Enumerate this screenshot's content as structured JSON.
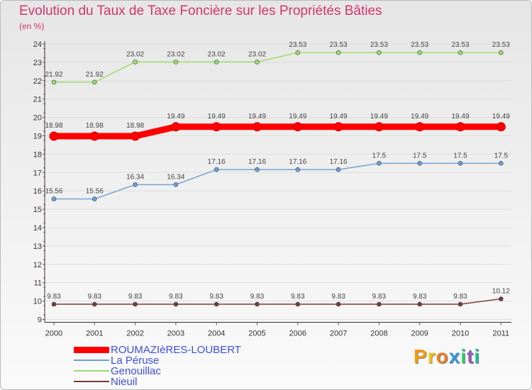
{
  "chart_data": {
    "type": "line",
    "title": "Evolution du Taux de Taxe Foncière sur les Propriétés Bâties",
    "ylabel": "(en %)",
    "xlabel": "",
    "ylim": [
      9,
      24
    ],
    "yticks": [
      9,
      10,
      11,
      12,
      13,
      14,
      15,
      16,
      17,
      18,
      19,
      20,
      21,
      22,
      23,
      24
    ],
    "categories": [
      "2000",
      "2001",
      "2002",
      "2003",
      "2004",
      "2005",
      "2006",
      "2007",
      "2008",
      "2009",
      "2010",
      "2011"
    ],
    "series": [
      {
        "name": "ROUMAZIèRES-LOUBERT",
        "color": "#ff0000",
        "values": [
          18.98,
          18.98,
          18.98,
          19.49,
          19.49,
          19.49,
          19.49,
          19.49,
          19.49,
          19.49,
          19.49,
          19.49
        ],
        "labels": [
          "18.98",
          "18.98",
          "18.98",
          "19.49",
          "19.49",
          "19.49",
          "19.49",
          "19.49",
          "19.49",
          "19.49",
          "19.49",
          "19.49"
        ]
      },
      {
        "name": "La Péruse",
        "color": "#6c9fd0",
        "values": [
          15.56,
          15.56,
          16.34,
          16.34,
          17.16,
          17.16,
          17.16,
          17.16,
          17.5,
          17.5,
          17.5,
          17.5
        ],
        "labels": [
          "15.56",
          "15.56",
          "16.34",
          "16.34",
          "17.16",
          "17.16",
          "17.16",
          "17.16",
          "17.5",
          "17.5",
          "17.5",
          "17.5"
        ]
      },
      {
        "name": "Genouillac",
        "color": "#99dd66",
        "values": [
          21.92,
          21.92,
          23.02,
          23.02,
          23.02,
          23.02,
          23.53,
          23.53,
          23.53,
          23.53,
          23.53,
          23.53
        ],
        "labels": [
          "21.92",
          "21.92",
          "23.02",
          "23.02",
          "23.02",
          "23.02",
          "23.53",
          "23.53",
          "23.53",
          "23.53",
          "23.53",
          "23.53"
        ]
      },
      {
        "name": "Nieuil",
        "color": "#7a3a3a",
        "values": [
          9.83,
          9.83,
          9.83,
          9.83,
          9.83,
          9.83,
          9.83,
          9.83,
          9.83,
          9.83,
          9.83,
          10.12
        ],
        "labels": [
          "9.83",
          "9.83",
          "9.83",
          "9.83",
          "9.83",
          "9.83",
          "9.83",
          "9.83",
          "9.83",
          "9.83",
          "9.83",
          "10.12"
        ]
      }
    ],
    "legend": "bottom-left"
  },
  "brand": {
    "text": "Proxiti",
    "colors": [
      "#f39c12",
      "#f1c40f",
      "#e67e22",
      "#3498db",
      "#2ecc71",
      "#9b59b6",
      "#1abc9c"
    ]
  }
}
